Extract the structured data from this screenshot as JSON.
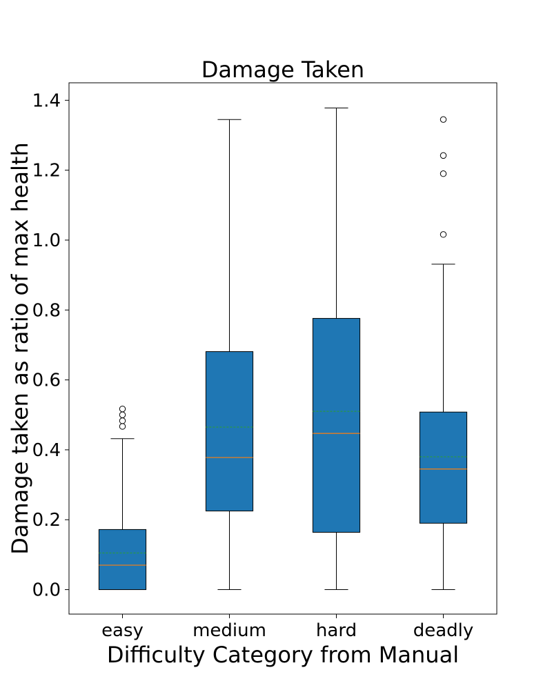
{
  "chart_data": {
    "type": "boxplot",
    "title": "Damage Taken",
    "xlabel": "Difficulty Category from Manual",
    "ylabel": "Damage taken as ratio of max health",
    "categories": [
      "easy",
      "medium",
      "hard",
      "deadly"
    ],
    "ylim": [
      -0.07,
      1.45
    ],
    "yticks": [
      "0.0",
      "0.2",
      "0.4",
      "0.6",
      "0.8",
      "1.0",
      "1.2",
      "1.4"
    ],
    "grid": false,
    "legend": "none",
    "boxes": [
      {
        "category": "easy",
        "whisker_low": 0.0,
        "q1": 0.0,
        "median": 0.07,
        "mean": 0.105,
        "q3": 0.172,
        "whisker_high": 0.432,
        "outliers": [
          0.467,
          0.483,
          0.5,
          0.517
        ]
      },
      {
        "category": "medium",
        "whisker_low": 0.0,
        "q1": 0.225,
        "median": 0.378,
        "mean": 0.465,
        "q3": 0.681,
        "whisker_high": 1.345,
        "outliers": []
      },
      {
        "category": "hard",
        "whisker_low": 0.0,
        "q1": 0.164,
        "median": 0.447,
        "mean": 0.51,
        "q3": 0.776,
        "whisker_high": 1.378,
        "outliers": []
      },
      {
        "category": "deadly",
        "whisker_low": 0.0,
        "q1": 0.19,
        "median": 0.345,
        "mean": 0.38,
        "q3": 0.508,
        "whisker_high": 0.931,
        "outliers": [
          1.016,
          1.19,
          1.242,
          1.345
        ]
      }
    ],
    "colors": {
      "box_fill": "#1f77b4",
      "median_line": "#ff7f0e",
      "mean_line": "#2ca02c",
      "edge": "#000000"
    }
  }
}
